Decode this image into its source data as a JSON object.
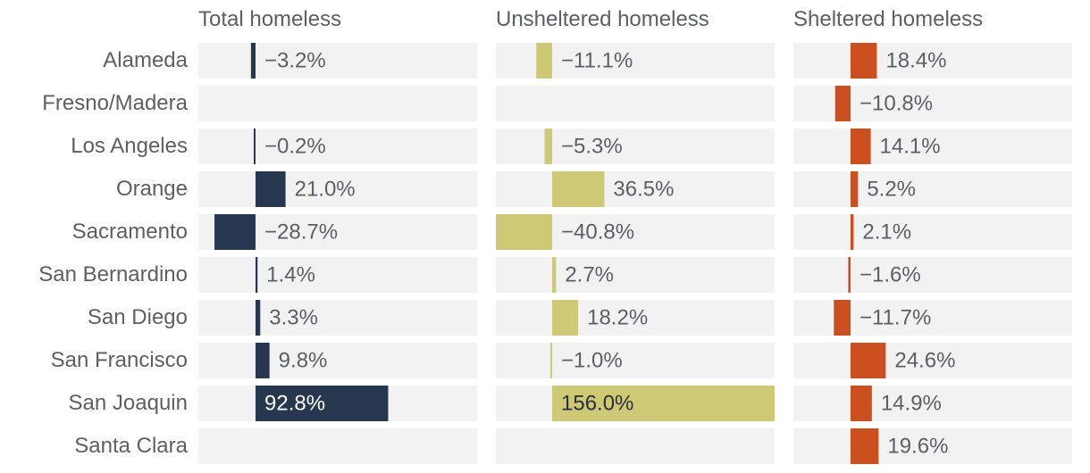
{
  "chart_data": {
    "type": "bar",
    "orientation": "horizontal",
    "categories": [
      "Alameda",
      "Fresno/Madera",
      "Los Angeles",
      "Orange",
      "Sacramento",
      "San Bernardino",
      "San Diego",
      "San Francisco",
      "San Joaquin",
      "Santa Clara"
    ],
    "series": [
      {
        "name": "Total homeless",
        "color": "#27374f",
        "values": [
          -3.2,
          null,
          -0.2,
          21.0,
          -28.7,
          1.4,
          3.3,
          9.8,
          92.8,
          null
        ],
        "labels": [
          "−3.2%",
          "",
          "−0.2%",
          "21.0%",
          "−28.7%",
          "1.4%",
          "3.3%",
          "9.8%",
          "92.8%",
          ""
        ]
      },
      {
        "name": "Unsheltered homeless",
        "color": "#cdc975",
        "values": [
          -11.1,
          null,
          -5.3,
          36.5,
          -40.8,
          2.7,
          18.2,
          -1.0,
          156.0,
          null
        ],
        "labels": [
          "−11.1%",
          "",
          "−5.3%",
          "36.5%",
          "−40.8%",
          "2.7%",
          "18.2%",
          "−1.0%",
          "156.0%",
          ""
        ]
      },
      {
        "name": "Sheltered homeless",
        "color": "#cc4f1f",
        "values": [
          18.4,
          -10.8,
          14.1,
          5.2,
          2.1,
          -1.6,
          -11.7,
          24.6,
          14.9,
          19.6
        ],
        "labels": [
          "18.4%",
          "−10.8%",
          "14.1%",
          "5.2%",
          "2.1%",
          "−1.6%",
          "−11.7%",
          "24.6%",
          "14.9%",
          "19.6%"
        ]
      }
    ],
    "units": "percent change",
    "panel_background": "#f2f2f2",
    "label_color": "#5b5f66",
    "grid": false,
    "legend": "none"
  }
}
